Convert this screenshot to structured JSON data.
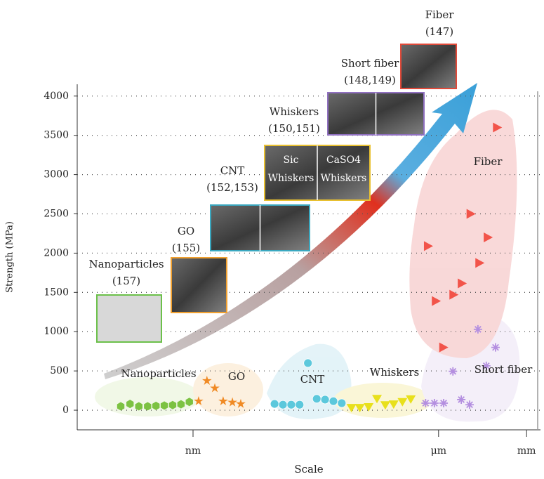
{
  "chart_data": {
    "type": "scatter",
    "y_label": "Strength (MPa)",
    "x_label": "Scale",
    "xlim": [
      0,
      100
    ],
    "xticks": [
      {
        "value": 25,
        "label": "nm"
      },
      {
        "value": 78,
        "label": "μm"
      },
      {
        "value": 97,
        "label": "mm"
      }
    ],
    "ylim": [
      -250,
      4150
    ],
    "yticks": [
      0,
      500,
      1000,
      1500,
      2000,
      2500,
      3000,
      3500,
      4000
    ],
    "grid": true,
    "series": [
      {
        "name": "Nanoparticles",
        "color": "#7cc242",
        "marker": "hexagon",
        "x": [
          9.4,
          11.4,
          13.3,
          15.2,
          17,
          18.8,
          20.6,
          22.4,
          24.2
        ],
        "values": [
          50,
          80,
          50,
          50,
          55,
          60,
          65,
          75,
          105
        ]
      },
      {
        "name": "GO",
        "color": "#f08a24",
        "marker": "star",
        "x": [
          26.2,
          28,
          29.7,
          31.5,
          33.5,
          35.3
        ],
        "values": [
          115,
          375,
          280,
          115,
          100,
          80
        ]
      },
      {
        "name": "CNT",
        "color": "#5cc8dc",
        "marker": "circle",
        "x": [
          42.6,
          44.4,
          46.2,
          48,
          49.8,
          51.7,
          53.5,
          55.3,
          57.1
        ],
        "values": [
          80,
          70,
          70,
          70,
          600,
          145,
          135,
          115,
          90
        ]
      },
      {
        "name": "Whiskers",
        "color": "#e8e01c",
        "marker": "triangle-down",
        "x": [
          59.2,
          61,
          62.9,
          64.7,
          66.5,
          68.3,
          70.2,
          72
        ],
        "values": [
          35,
          35,
          45,
          150,
          70,
          80,
          110,
          145
        ]
      },
      {
        "name": "Short fiber",
        "color": "#b48fe0",
        "marker": "asterisk",
        "x": [
          75.2,
          77.1,
          79.1,
          81.1,
          82.9,
          84.7,
          86.5,
          88.3,
          90.3
        ],
        "values": [
          90,
          90,
          90,
          495,
          135,
          70,
          1030,
          565,
          800
        ]
      },
      {
        "name": "Fiber",
        "color": "#f2544a",
        "marker": "triangle-right",
        "x": [
          75.6,
          77.3,
          78.9,
          81.1,
          82.9,
          84.8,
          86.7,
          88.5,
          90.5
        ],
        "values": [
          2090,
          1390,
          800,
          1470,
          1615,
          2500,
          1875,
          2200,
          3600
        ]
      }
    ],
    "annotations": [
      {
        "label": "Nanoparticles",
        "ref": "(157)"
      },
      {
        "label": "GO",
        "ref": "(155)"
      },
      {
        "label": "CNT",
        "ref": "(152,153)"
      },
      {
        "label": "Whiskers",
        "ref": "(150,151)",
        "image_text": [
          [
            "Sic",
            "Whiskers"
          ],
          [
            "CaSO4",
            "Whiskers"
          ]
        ]
      },
      {
        "label": "Short fiber",
        "ref": "(148,149)"
      },
      {
        "label": "Fiber",
        "ref": "(147)"
      }
    ]
  }
}
